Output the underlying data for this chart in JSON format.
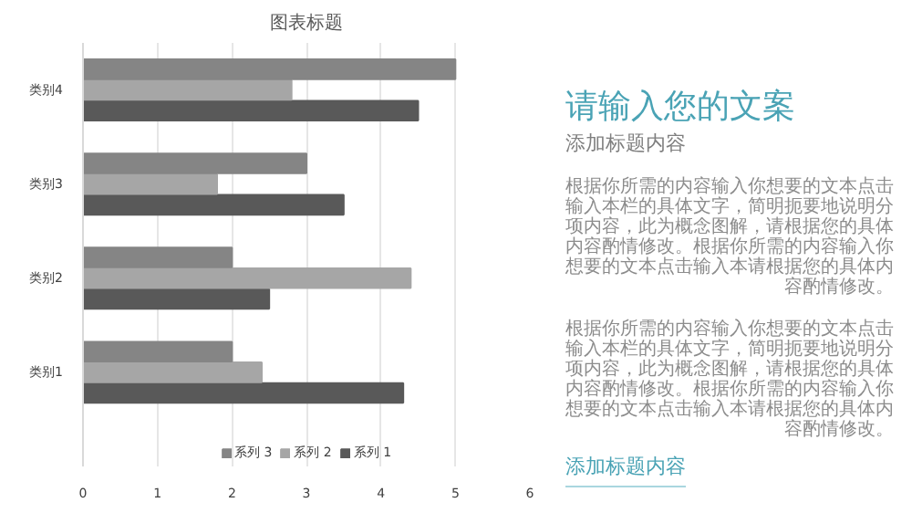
{
  "chart_data": {
    "type": "bar",
    "orientation": "horizontal",
    "title": "图表标题",
    "categories": [
      "类别4",
      "类别3",
      "类别2",
      "类别1"
    ],
    "series": [
      {
        "name": "系列 1",
        "color": "#595959",
        "values": [
          4.5,
          3.5,
          2.5,
          4.3
        ]
      },
      {
        "name": "系列 2",
        "color": "#a6a6a6",
        "values": [
          2.8,
          1.8,
          4.4,
          2.4
        ]
      },
      {
        "name": "系列 3",
        "color": "#858585",
        "values": [
          5.0,
          3.0,
          2.0,
          2.0
        ]
      }
    ],
    "xlim": [
      0,
      6
    ],
    "xticks": [
      0,
      1,
      2,
      3,
      4,
      5,
      6
    ],
    "grid": "x",
    "legend": "bottom",
    "annotations": [
      "请输入您的文案",
      "添加标题内容",
      "根据你所需的内容输入你想要的文本点击输入本栏的具体文字，简明扼要地说明分项内容，此为概念图解，请根据您的具体内容酌情修改。根据你所需的内容输入你想要的文本点击输入本请根据您的具体内容酌情修改。",
      "根据你所需的内容输入你想要的文本点击输入本栏的具体文字，简明扼要地说明分项内容，此为概念图解，请根据您的具体内容酌情修改。根据你所需的内容输入你想要的文本点击输入本请根据您的具体内容酌情修改。",
      "添加标题内容"
    ]
  }
}
